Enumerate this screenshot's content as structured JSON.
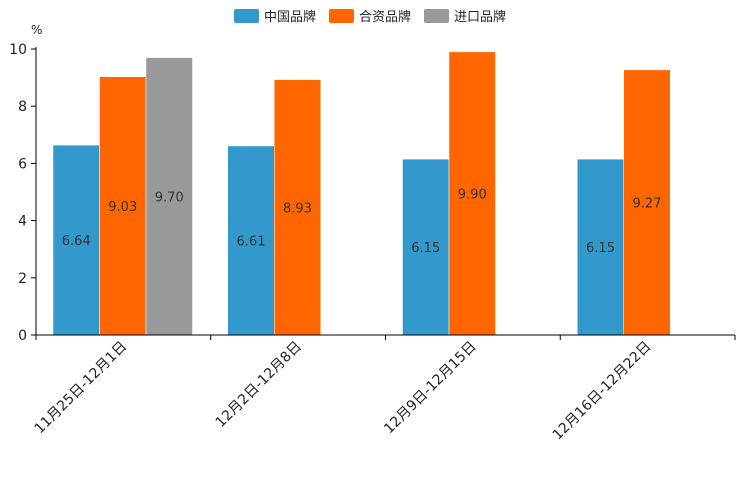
{
  "chart_data": {
    "type": "bar",
    "unit_label": "%",
    "categories": [
      "11月25日-12月1日",
      "12月2日-12月8日",
      "12月9日-12月15日",
      "12月16日-12月22日"
    ],
    "series": [
      {
        "name": "中国品牌",
        "color": "#3399cc",
        "values": [
          6.64,
          6.61,
          6.15,
          6.15
        ]
      },
      {
        "name": "合资品牌",
        "color": "#ff6600",
        "values": [
          9.03,
          8.93,
          9.9,
          9.27
        ]
      },
      {
        "name": "进口品牌",
        "color": "#999999",
        "values": [
          9.7,
          null,
          null,
          null
        ]
      }
    ],
    "data_labels": [
      [
        "6.64",
        "6.61",
        "6.15",
        "6.15"
      ],
      [
        "9.03",
        "8.93",
        "9.90",
        "9.27"
      ],
      [
        "9.70",
        null,
        null,
        null
      ]
    ],
    "y_ticks": [
      "0",
      "2",
      "4",
      "6",
      "8",
      "10"
    ],
    "ylim": [
      0,
      10
    ],
    "legend_position": "top-center",
    "grid": false
  }
}
